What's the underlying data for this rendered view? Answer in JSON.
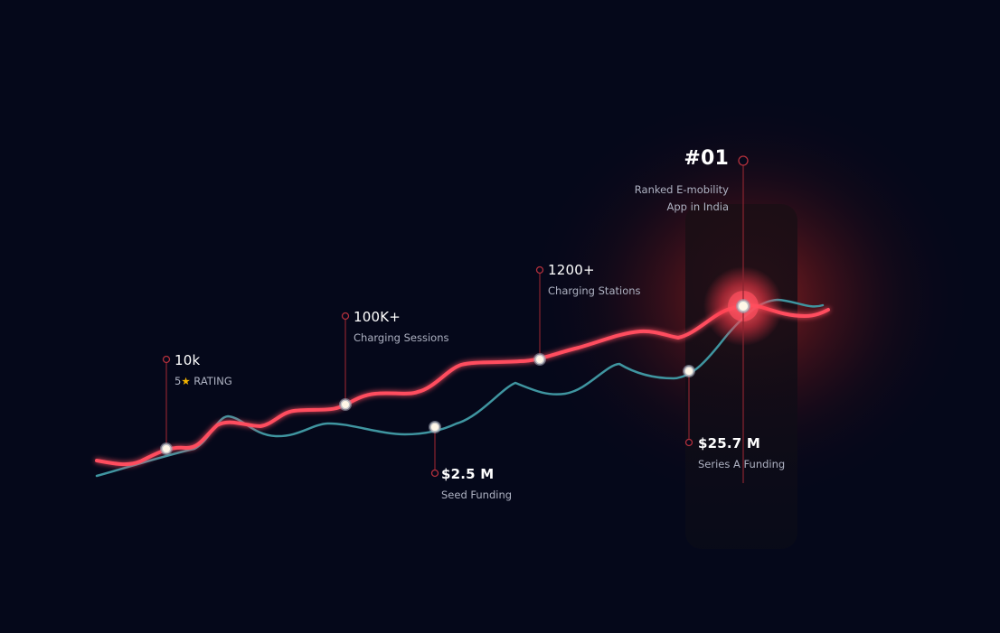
{
  "colors": {
    "background": "#05081a",
    "primary_line": "#ff4d5e",
    "secondary_line": "#3f95a0",
    "accent_glow": "#ff3a3a",
    "rating_star": "#f4b400"
  },
  "milestones": {
    "rating": {
      "value": "10k",
      "caption_prefix": "5",
      "caption_icon": "star-icon",
      "caption_suffix": " RATING"
    },
    "sessions": {
      "value": "100K+",
      "caption": "Charging Sessions"
    },
    "stations": {
      "value": "1200+",
      "caption": "Charging Stations"
    },
    "seed": {
      "value": "$2.5 M",
      "caption": "Seed Funding"
    },
    "series_a": {
      "value": "$25.7 M",
      "caption": "Series A Funding"
    },
    "rank": {
      "value": "#01",
      "caption_line1": "Ranked E-mobility",
      "caption_line2": "App in India"
    }
  }
}
